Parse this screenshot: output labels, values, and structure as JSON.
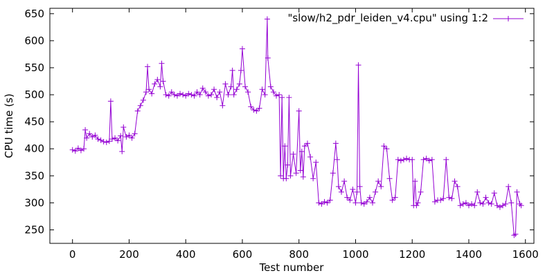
{
  "chart_data": {
    "type": "line",
    "title": "",
    "xlabel": "Test number",
    "ylabel": "CPU time (s)",
    "xlim": [
      -80,
      1630
    ],
    "ylim": [
      225,
      660
    ],
    "xticks": [
      0,
      200,
      400,
      600,
      800,
      1000,
      1200,
      1400,
      1600
    ],
    "yticks": [
      250,
      300,
      350,
      400,
      450,
      500,
      550,
      600,
      650
    ],
    "grid": false,
    "legend_position": "top-right",
    "series": [
      {
        "name": "\"slow/h2_pdr_leiden_v4.cpu\" using 1:2",
        "color": "#9400d3",
        "marker": "plus",
        "points": [
          [
            0,
            398
          ],
          [
            10,
            396
          ],
          [
            20,
            401
          ],
          [
            30,
            397
          ],
          [
            40,
            400
          ],
          [
            45,
            435
          ],
          [
            50,
            420
          ],
          [
            60,
            428
          ],
          [
            70,
            422
          ],
          [
            80,
            425
          ],
          [
            90,
            418
          ],
          [
            100,
            416
          ],
          [
            110,
            413
          ],
          [
            120,
            412
          ],
          [
            130,
            414
          ],
          [
            135,
            488
          ],
          [
            140,
            418
          ],
          [
            150,
            420
          ],
          [
            160,
            415
          ],
          [
            170,
            424
          ],
          [
            175,
            395
          ],
          [
            180,
            440
          ],
          [
            190,
            422
          ],
          [
            200,
            425
          ],
          [
            210,
            420
          ],
          [
            220,
            428
          ],
          [
            230,
            470
          ],
          [
            240,
            480
          ],
          [
            250,
            490
          ],
          [
            260,
            505
          ],
          [
            265,
            552
          ],
          [
            270,
            510
          ],
          [
            280,
            502
          ],
          [
            290,
            520
          ],
          [
            300,
            528
          ],
          [
            310,
            515
          ],
          [
            315,
            558
          ],
          [
            320,
            525
          ],
          [
            330,
            500
          ],
          [
            340,
            498
          ],
          [
            350,
            505
          ],
          [
            360,
            500
          ],
          [
            370,
            498
          ],
          [
            380,
            502
          ],
          [
            390,
            500
          ],
          [
            400,
            498
          ],
          [
            410,
            502
          ],
          [
            420,
            500
          ],
          [
            430,
            498
          ],
          [
            440,
            505
          ],
          [
            450,
            500
          ],
          [
            460,
            512
          ],
          [
            470,
            505
          ],
          [
            480,
            498
          ],
          [
            490,
            500
          ],
          [
            500,
            510
          ],
          [
            510,
            495
          ],
          [
            520,
            505
          ],
          [
            530,
            480
          ],
          [
            540,
            520
          ],
          [
            550,
            500
          ],
          [
            560,
            515
          ],
          [
            565,
            545
          ],
          [
            570,
            500
          ],
          [
            580,
            510
          ],
          [
            590,
            520
          ],
          [
            595,
            545
          ],
          [
            600,
            585
          ],
          [
            610,
            515
          ],
          [
            620,
            505
          ],
          [
            630,
            478
          ],
          [
            640,
            472
          ],
          [
            650,
            470
          ],
          [
            660,
            475
          ],
          [
            670,
            510
          ],
          [
            680,
            500
          ],
          [
            688,
            640
          ],
          [
            690,
            568
          ],
          [
            700,
            515
          ],
          [
            710,
            505
          ],
          [
            720,
            498
          ],
          [
            730,
            500
          ],
          [
            735,
            350
          ],
          [
            740,
            495
          ],
          [
            745,
            345
          ],
          [
            750,
            405
          ],
          [
            755,
            345
          ],
          [
            760,
            370
          ],
          [
            765,
            495
          ],
          [
            770,
            350
          ],
          [
            780,
            390
          ],
          [
            790,
            355
          ],
          [
            800,
            470
          ],
          [
            805,
            360
          ],
          [
            810,
            395
          ],
          [
            815,
            348
          ],
          [
            820,
            405
          ],
          [
            830,
            410
          ],
          [
            840,
            385
          ],
          [
            850,
            345
          ],
          [
            860,
            375
          ],
          [
            870,
            300
          ],
          [
            880,
            298
          ],
          [
            890,
            302
          ],
          [
            900,
            300
          ],
          [
            910,
            305
          ],
          [
            920,
            355
          ],
          [
            930,
            410
          ],
          [
            935,
            380
          ],
          [
            940,
            330
          ],
          [
            950,
            320
          ],
          [
            960,
            340
          ],
          [
            970,
            310
          ],
          [
            980,
            305
          ],
          [
            990,
            325
          ],
          [
            1000,
            300
          ],
          [
            1005,
            320
          ],
          [
            1010,
            555
          ],
          [
            1015,
            330
          ],
          [
            1020,
            300
          ],
          [
            1030,
            298
          ],
          [
            1040,
            302
          ],
          [
            1050,
            310
          ],
          [
            1060,
            300
          ],
          [
            1070,
            320
          ],
          [
            1080,
            340
          ],
          [
            1090,
            330
          ],
          [
            1100,
            405
          ],
          [
            1110,
            400
          ],
          [
            1120,
            345
          ],
          [
            1130,
            305
          ],
          [
            1140,
            310
          ],
          [
            1150,
            380
          ],
          [
            1160,
            378
          ],
          [
            1170,
            380
          ],
          [
            1180,
            382
          ],
          [
            1190,
            380
          ],
          [
            1200,
            380
          ],
          [
            1205,
            295
          ],
          [
            1210,
            340
          ],
          [
            1215,
            295
          ],
          [
            1220,
            300
          ],
          [
            1230,
            320
          ],
          [
            1240,
            380
          ],
          [
            1250,
            382
          ],
          [
            1260,
            378
          ],
          [
            1270,
            380
          ],
          [
            1280,
            302
          ],
          [
            1290,
            305
          ],
          [
            1300,
            305
          ],
          [
            1310,
            308
          ],
          [
            1320,
            380
          ],
          [
            1330,
            310
          ],
          [
            1340,
            308
          ],
          [
            1350,
            340
          ],
          [
            1360,
            330
          ],
          [
            1370,
            295
          ],
          [
            1380,
            298
          ],
          [
            1390,
            300
          ],
          [
            1400,
            295
          ],
          [
            1410,
            298
          ],
          [
            1420,
            295
          ],
          [
            1430,
            320
          ],
          [
            1440,
            300
          ],
          [
            1450,
            298
          ],
          [
            1460,
            310
          ],
          [
            1470,
            300
          ],
          [
            1480,
            298
          ],
          [
            1490,
            318
          ],
          [
            1500,
            295
          ],
          [
            1510,
            292
          ],
          [
            1520,
            295
          ],
          [
            1530,
            298
          ],
          [
            1540,
            330
          ],
          [
            1550,
            300
          ],
          [
            1560,
            240
          ],
          [
            1565,
            242
          ],
          [
            1570,
            320
          ],
          [
            1580,
            298
          ],
          [
            1585,
            295
          ]
        ]
      }
    ]
  }
}
